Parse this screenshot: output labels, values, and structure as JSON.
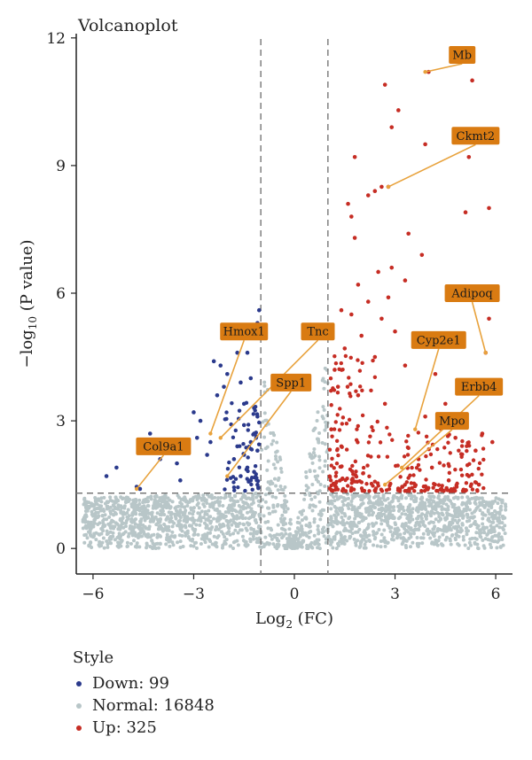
{
  "chart_data": {
    "type": "scatter",
    "title": "Volcanoplot",
    "xlabel_main": "Log",
    "xlabel_sub": "2",
    "xlabel_tail": " (FC)",
    "ylabel_main": "−log",
    "ylabel_sub": "10",
    "ylabel_tail": " (P value)",
    "xlim": [
      -6.5,
      6.5
    ],
    "ylim": [
      -0.6,
      12.1
    ],
    "xticks": [
      -6,
      -3,
      0,
      3,
      6
    ],
    "xtick_labels": [
      "−6",
      "−3",
      "0",
      "3",
      "6"
    ],
    "yticks": [
      0,
      3,
      6,
      9,
      12
    ],
    "ytick_labels": [
      "0",
      "3",
      "6",
      "9",
      "12"
    ],
    "fc_threshold": [
      -1,
      1
    ],
    "p_threshold": 1.3,
    "legend": {
      "title": "Style",
      "position": "bottom-left",
      "items": [
        {
          "label": "Down: 99",
          "color": "#2b3a8c"
        },
        {
          "label": "Normal: 16848",
          "color": "#b8c6c8"
        },
        {
          "label": "Up: 325",
          "color": "#c62d24"
        }
      ]
    },
    "colors": {
      "down": "#2b3a8c",
      "normal": "#b8c6c8",
      "up": "#c62d24",
      "annotation_box": "#d97b12",
      "annotation_line": "#e8a23c"
    },
    "series": [
      {
        "name": "Down",
        "count": 99,
        "points": [
          [
            -5.6,
            1.7
          ],
          [
            -5.3,
            1.9
          ],
          [
            -4.7,
            1.45
          ],
          [
            -4.6,
            1.4
          ],
          [
            -4.3,
            2.7
          ],
          [
            -4.0,
            2.1
          ],
          [
            -3.5,
            2.0
          ],
          [
            -3.4,
            1.6
          ],
          [
            -3.2,
            2.4
          ],
          [
            -3.0,
            3.2
          ],
          [
            -2.9,
            2.6
          ],
          [
            -2.8,
            3.0
          ],
          [
            -2.6,
            2.2
          ],
          [
            -2.5,
            2.5
          ],
          [
            -2.4,
            4.4
          ],
          [
            -2.3,
            3.6
          ],
          [
            -2.2,
            4.3
          ],
          [
            -2.1,
            3.8
          ],
          [
            -2.0,
            4.1
          ],
          [
            -1.9,
            5.0
          ],
          [
            -1.8,
            5.1
          ],
          [
            -1.7,
            4.6
          ],
          [
            -1.6,
            3.9
          ],
          [
            -1.5,
            3.4
          ],
          [
            -1.4,
            4.6
          ],
          [
            -1.3,
            4.0
          ],
          [
            -1.2,
            3.3
          ],
          [
            -1.1,
            3.1
          ],
          [
            -1.05,
            5.6
          ],
          [
            -1.1,
            5.3
          ],
          [
            -1.7,
            2.4
          ],
          [
            -1.5,
            2.9
          ],
          [
            -1.3,
            2.5
          ],
          [
            -1.1,
            2.3
          ],
          [
            -1.2,
            1.8
          ],
          [
            -1.4,
            1.9
          ],
          [
            -1.6,
            1.7
          ],
          [
            -1.8,
            2.1
          ],
          [
            -1.1,
            1.5
          ],
          [
            -1.3,
            1.6
          ],
          [
            -1.5,
            2.2
          ],
          [
            -1.2,
            2.7
          ]
        ]
      },
      {
        "name": "Up",
        "count": 325,
        "points": [
          [
            4.0,
            11.2
          ],
          [
            5.3,
            11.0
          ],
          [
            2.7,
            10.9
          ],
          [
            3.1,
            10.3
          ],
          [
            2.9,
            9.9
          ],
          [
            3.9,
            9.5
          ],
          [
            5.2,
            9.2
          ],
          [
            1.8,
            9.2
          ],
          [
            2.6,
            8.5
          ],
          [
            2.4,
            8.4
          ],
          [
            2.2,
            8.3
          ],
          [
            2.8,
            8.5
          ],
          [
            1.6,
            8.1
          ],
          [
            1.7,
            7.8
          ],
          [
            5.1,
            7.9
          ],
          [
            5.8,
            8.0
          ],
          [
            1.8,
            7.3
          ],
          [
            3.4,
            7.4
          ],
          [
            3.8,
            6.9
          ],
          [
            2.9,
            6.6
          ],
          [
            3.3,
            6.3
          ],
          [
            2.5,
            6.5
          ],
          [
            1.9,
            6.2
          ],
          [
            1.4,
            5.6
          ],
          [
            2.2,
            5.8
          ],
          [
            2.6,
            5.4
          ],
          [
            2.8,
            5.9
          ],
          [
            3.0,
            5.1
          ],
          [
            1.7,
            5.5
          ],
          [
            2.0,
            5.0
          ],
          [
            3.6,
            4.8
          ],
          [
            1.5,
            4.7
          ],
          [
            2.4,
            4.5
          ],
          [
            3.3,
            4.3
          ],
          [
            4.2,
            4.1
          ],
          [
            1.2,
            4.2
          ],
          [
            5.7,
            4.6
          ],
          [
            5.6,
            2.7
          ],
          [
            5.4,
            2.3
          ],
          [
            5.9,
            2.5
          ],
          [
            5.8,
            5.4
          ],
          [
            4.5,
            3.4
          ],
          [
            1.3,
            3.8
          ],
          [
            1.9,
            3.6
          ],
          [
            2.7,
            3.4
          ],
          [
            3.9,
            3.1
          ],
          [
            4.8,
            2.6
          ],
          [
            5.2,
            1.7
          ],
          [
            5.5,
            1.5
          ],
          [
            4.1,
            1.9
          ],
          [
            4.6,
            1.6
          ],
          [
            3.7,
            2.1
          ],
          [
            1.1,
            2.8
          ],
          [
            1.4,
            2.4
          ]
        ]
      }
    ],
    "normal_points": [
      [
        -6.2,
        1.1
      ],
      [
        -5.8,
        1.0
      ],
      [
        -5.4,
        0.9
      ],
      [
        -5.0,
        1.2
      ],
      [
        -4.6,
        0.8
      ],
      [
        -4.2,
        1.0
      ],
      [
        -3.8,
        0.7
      ],
      [
        -3.4,
        0.9
      ],
      [
        -3.0,
        0.6
      ],
      [
        -2.6,
        0.8
      ],
      [
        -2.2,
        0.5
      ],
      [
        -1.8,
        0.7
      ],
      [
        -1.4,
        0.6
      ],
      [
        -1.0,
        0.4
      ],
      [
        -0.6,
        0.3
      ],
      [
        -0.2,
        0.1
      ],
      [
        0.2,
        0.1
      ],
      [
        0.6,
        0.3
      ],
      [
        1.0,
        0.4
      ],
      [
        1.4,
        0.6
      ],
      [
        1.8,
        0.7
      ],
      [
        2.2,
        0.5
      ],
      [
        2.6,
        0.8
      ],
      [
        3.0,
        0.6
      ],
      [
        3.4,
        0.9
      ],
      [
        3.8,
        0.7
      ],
      [
        4.2,
        1.0
      ],
      [
        4.6,
        0.8
      ],
      [
        5.0,
        1.2
      ],
      [
        5.4,
        0.9
      ],
      [
        5.8,
        1.0
      ],
      [
        6.2,
        1.1
      ]
    ],
    "annotations": [
      {
        "label": "Mb",
        "point": [
          3.9,
          11.2
        ],
        "box": [
          5.0,
          11.6
        ]
      },
      {
        "label": "Ckmt2",
        "point": [
          2.8,
          8.5
        ],
        "box": [
          5.4,
          9.7
        ]
      },
      {
        "label": "Adipoq",
        "point": [
          5.7,
          4.6
        ],
        "box": [
          5.3,
          6.0
        ]
      },
      {
        "label": "Hmox1",
        "point": [
          -2.5,
          2.7
        ],
        "box": [
          -1.5,
          5.1
        ]
      },
      {
        "label": "Tnc",
        "point": [
          -2.2,
          2.6
        ],
        "box": [
          0.7,
          5.1
        ]
      },
      {
        "label": "Cyp2e1",
        "point": [
          3.6,
          2.8
        ],
        "box": [
          4.3,
          4.9
        ]
      },
      {
        "label": "Spp1",
        "point": [
          -2.0,
          1.7
        ],
        "box": [
          -0.1,
          3.9
        ]
      },
      {
        "label": "Erbb4",
        "point": [
          3.2,
          1.9
        ],
        "box": [
          5.5,
          3.8
        ]
      },
      {
        "label": "Mpo",
        "point": [
          2.7,
          1.5
        ],
        "box": [
          4.7,
          3.0
        ]
      },
      {
        "label": "Col9a1",
        "point": [
          -4.7,
          1.4
        ],
        "box": [
          -3.9,
          2.4
        ]
      }
    ]
  }
}
